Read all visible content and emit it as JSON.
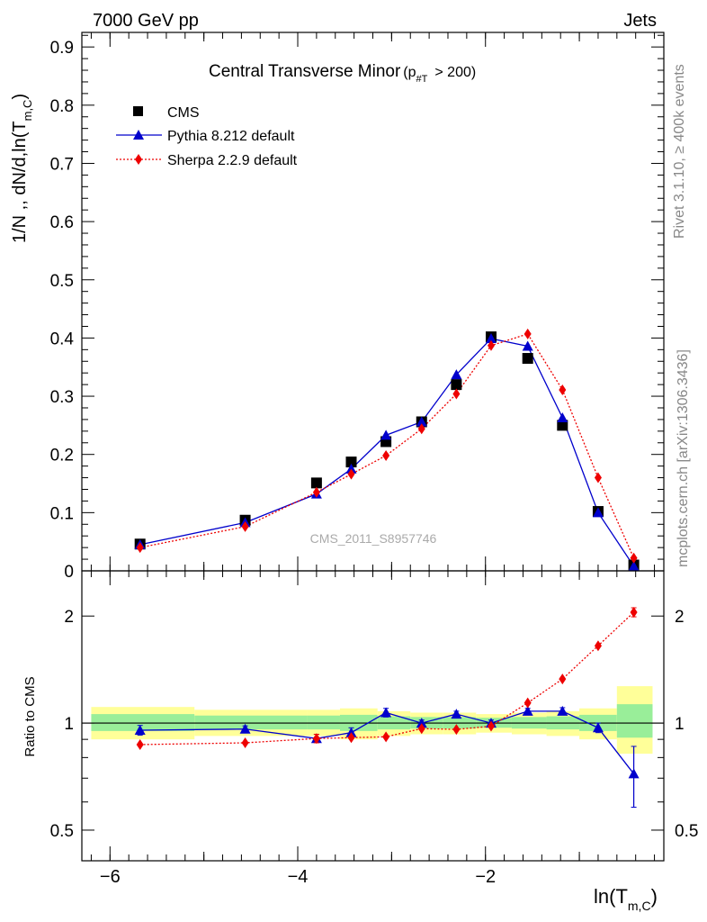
{
  "header": {
    "left": "7000 GeV pp",
    "right": "Jets"
  },
  "side_labels": {
    "rivet": "Rivet 3.1.10, ≥ 400k events",
    "mcplots": "mcplots.cern.ch [arXiv:1306.3436]"
  },
  "main_plot": {
    "title_main": "Central Transverse Minor",
    "title_paren_open": "(p",
    "title_sub": "#T",
    "title_paren_close": "> 200)",
    "ylabel": "1/N ,, dN/d,ln(T",
    "ylabel_sub": "m,C",
    "ylabel_close": ")",
    "watermark": "CMS_2011_S8957746",
    "y_ticks": [
      "0",
      "0.1",
      "0.2",
      "0.3",
      "0.4",
      "0.5",
      "0.6",
      "0.7",
      "0.8",
      "0.9"
    ]
  },
  "ratio_plot": {
    "ylabel": "Ratio to CMS",
    "y_ticks": [
      "0.5",
      "1",
      "2"
    ]
  },
  "x_axis": {
    "label": "ln(T",
    "label_sub": "m,C",
    "label_close": ")",
    "ticks": [
      "−6",
      "−4",
      "−2"
    ]
  },
  "legend": [
    {
      "label": "CMS",
      "color": "#000000",
      "marker": "square"
    },
    {
      "label": "Pythia 8.212 default",
      "color": "#0000cc",
      "marker": "triangle"
    },
    {
      "label": "Sherpa 2.2.9 default",
      "color": "#ee0000",
      "marker": "diamond"
    }
  ],
  "chart_data": [
    {
      "type": "line",
      "panel": "main",
      "x": [
        -5.68,
        -4.56,
        -3.8,
        -3.43,
        -3.06,
        -2.68,
        -2.31,
        -1.94,
        -1.55,
        -1.18,
        -0.8,
        -0.42
      ],
      "xlim": [
        -6.3,
        -0.1
      ],
      "ylim": [
        0,
        0.925
      ],
      "series": [
        {
          "name": "CMS",
          "color": "#000000",
          "marker": "square",
          "values": [
            0.046,
            0.087,
            0.151,
            0.187,
            0.222,
            0.256,
            0.32,
            0.402,
            0.365,
            0.25,
            0.102,
            0.01
          ]
        },
        {
          "name": "Pythia 8.212 default",
          "color": "#0000cc",
          "marker": "triangle",
          "values": [
            0.045,
            0.083,
            0.132,
            0.175,
            0.233,
            0.256,
            0.337,
            0.399,
            0.386,
            0.263,
            0.1,
            0.008
          ]
        },
        {
          "name": "Sherpa 2.2.9 default",
          "color": "#ee0000",
          "marker": "diamond",
          "values": [
            0.04,
            0.076,
            0.135,
            0.166,
            0.198,
            0.244,
            0.304,
            0.387,
            0.407,
            0.311,
            0.16,
            0.022
          ]
        }
      ]
    },
    {
      "type": "line",
      "panel": "ratio",
      "scale": "log",
      "x": [
        -5.68,
        -4.56,
        -3.8,
        -3.43,
        -3.06,
        -2.68,
        -2.31,
        -1.94,
        -1.55,
        -1.18,
        -0.8,
        -0.42
      ],
      "xlim": [
        -6.3,
        -0.1
      ],
      "ylim": [
        0.41,
        2.68
      ],
      "reference": 1,
      "band_edges": [
        -6.2,
        -5.1,
        -3.9,
        -3.55,
        -3.15,
        -2.8,
        -2.45,
        -2.1,
        -1.72,
        -1.35,
        -1.0,
        -0.6,
        -0.22
      ],
      "band_yellow_lo": [
        0.9,
        0.92,
        0.92,
        0.9,
        0.92,
        0.93,
        0.93,
        0.94,
        0.93,
        0.92,
        0.9,
        0.82
      ],
      "band_yellow_hi": [
        1.11,
        1.09,
        1.09,
        1.1,
        1.08,
        1.07,
        1.07,
        1.06,
        1.07,
        1.08,
        1.1,
        1.27
      ],
      "band_green_lo": [
        0.95,
        0.96,
        0.96,
        0.95,
        0.96,
        0.965,
        0.965,
        0.97,
        0.965,
        0.96,
        0.95,
        0.91
      ],
      "band_green_hi": [
        1.06,
        1.05,
        1.05,
        1.055,
        1.045,
        1.04,
        1.04,
        1.035,
        1.04,
        1.045,
        1.055,
        1.13
      ],
      "series": [
        {
          "name": "Pythia 8.212 default",
          "color": "#0000cc",
          "marker": "triangle",
          "values": [
            0.955,
            0.962,
            0.905,
            0.94,
            1.07,
            1.0,
            1.06,
            1.0,
            1.08,
            1.08,
            0.97,
            0.72
          ],
          "err": [
            0.03,
            0.02,
            0.025,
            0.03,
            0.03,
            0.02,
            0.02,
            0.02,
            0.02,
            0.025,
            0.03,
            0.14
          ]
        },
        {
          "name": "Sherpa 2.2.9 default",
          "color": "#ee0000",
          "marker": "diamond",
          "values": [
            0.87,
            0.88,
            0.905,
            0.91,
            0.915,
            0.965,
            0.96,
            0.98,
            1.14,
            1.33,
            1.65,
            2.05
          ],
          "err": [
            0,
            0,
            0.025,
            0,
            0,
            0,
            0,
            0,
            0,
            0,
            0,
            0.06
          ]
        }
      ]
    }
  ]
}
